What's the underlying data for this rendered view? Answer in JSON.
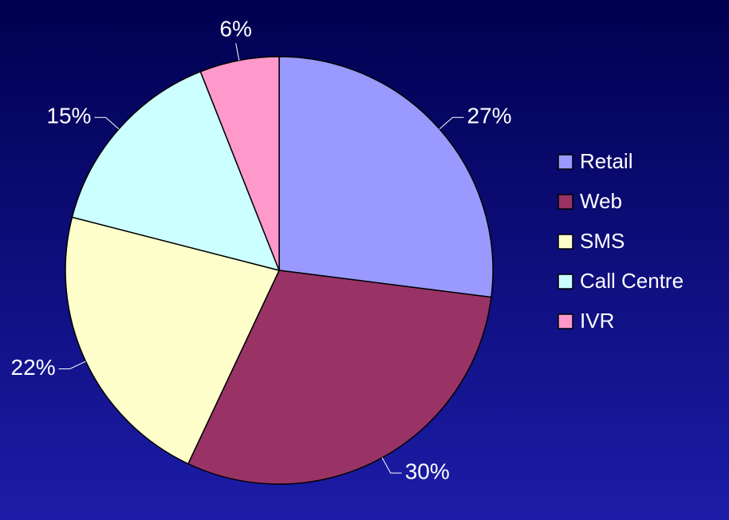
{
  "chart_data": {
    "type": "pie",
    "categories": [
      "Retail",
      "Web",
      "SMS",
      "Call Centre",
      "IVR"
    ],
    "values": [
      27,
      30,
      22,
      15,
      6
    ],
    "value_labels": [
      "27%",
      "30%",
      "22%",
      "15%",
      "6%"
    ],
    "colors": [
      "#9999ff",
      "#993366",
      "#ffffcc",
      "#ccffff",
      "#ff99cc"
    ],
    "legend": "right"
  }
}
